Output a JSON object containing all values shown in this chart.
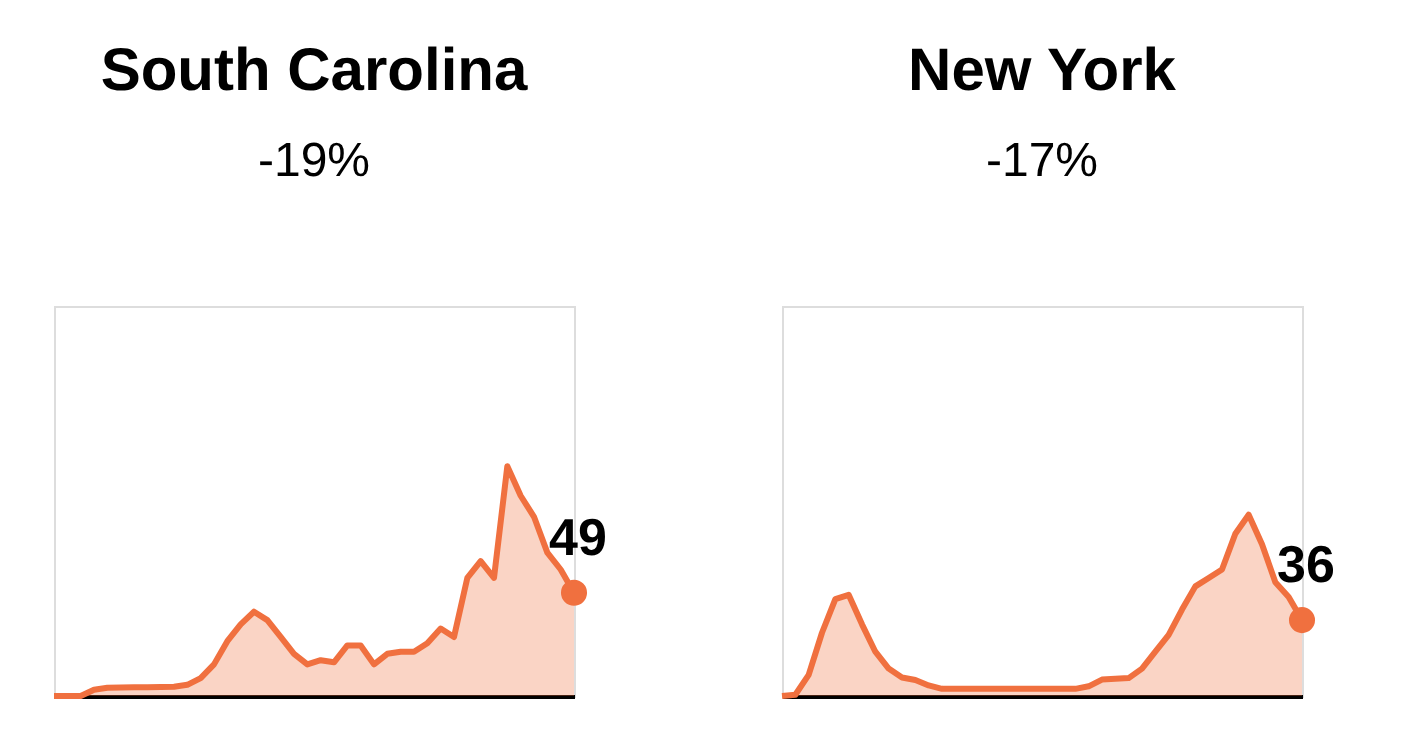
{
  "chart_data": [
    {
      "type": "line",
      "title": "South Carolina",
      "subtitle": "-19%",
      "tick_labels": false,
      "grid": false,
      "color": "#f0703f",
      "ylim": [
        0,
        185
      ],
      "categories": [
        null,
        null,
        null,
        null,
        null,
        null,
        null,
        null,
        null,
        null,
        null,
        null,
        null,
        null,
        null,
        null,
        null,
        null,
        null,
        null,
        null,
        null,
        null,
        null,
        null,
        null,
        null,
        null,
        null,
        null,
        null,
        null,
        null,
        null,
        null,
        null,
        null,
        null,
        null,
        null
      ],
      "values": [
        0,
        0,
        0,
        3,
        3.9,
        4,
        4.1,
        4.2,
        4.3,
        4.4,
        5.3,
        8.5,
        15,
        26,
        34,
        40,
        36,
        28,
        20,
        15,
        17,
        16,
        24,
        24,
        15,
        20,
        21,
        21,
        25,
        32,
        28,
        56,
        64,
        56,
        109,
        95,
        85,
        68,
        60,
        49
      ],
      "value_labels": [
        null,
        null,
        null,
        null,
        null,
        null,
        null,
        null,
        null,
        null,
        null,
        null,
        null,
        null,
        null,
        null,
        null,
        null,
        null,
        null,
        null,
        null,
        null,
        null,
        null,
        null,
        null,
        null,
        null,
        null,
        null,
        null,
        null,
        null,
        null,
        null,
        null,
        null,
        null,
        "49"
      ]
    },
    {
      "type": "line",
      "title": "New York",
      "subtitle": "-17%",
      "tick_labels": false,
      "grid": false,
      "color": "#f0703f",
      "ylim": [
        0,
        185
      ],
      "categories": [
        null,
        null,
        null,
        null,
        null,
        null,
        null,
        null,
        null,
        null,
        null,
        null,
        null,
        null,
        null,
        null,
        null,
        null,
        null,
        null,
        null,
        null,
        null,
        null,
        null,
        null,
        null,
        null,
        null,
        null,
        null,
        null,
        null,
        null,
        null,
        null,
        null,
        null,
        null,
        null
      ],
      "values": [
        0,
        0.6,
        10,
        30,
        46,
        48,
        34,
        21,
        13,
        8.8,
        7.6,
        5,
        3.4,
        3.4,
        3.4,
        3.4,
        3.4,
        3.4,
        3.4,
        3.4,
        3.4,
        3.4,
        3.4,
        4.6,
        7.8,
        8.2,
        8.5,
        13,
        21,
        29,
        41,
        52,
        56,
        60,
        77,
        86,
        72,
        54,
        47,
        36
      ],
      "value_labels": [
        null,
        null,
        null,
        null,
        null,
        null,
        null,
        null,
        null,
        null,
        null,
        null,
        null,
        null,
        null,
        null,
        null,
        null,
        null,
        null,
        null,
        null,
        null,
        null,
        null,
        null,
        null,
        null,
        null,
        null,
        null,
        null,
        null,
        null,
        null,
        null,
        null,
        null,
        null,
        "36"
      ]
    }
  ]
}
